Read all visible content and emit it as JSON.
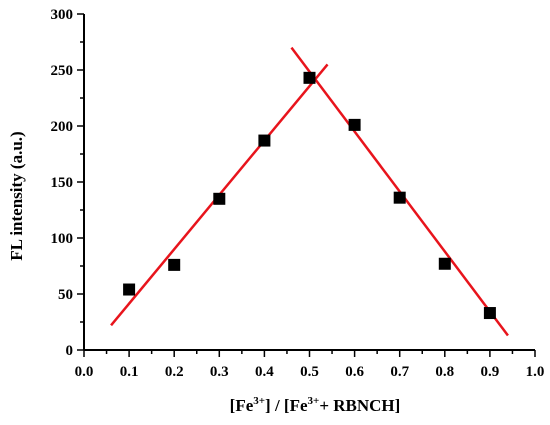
{
  "chart_data": {
    "type": "scatter",
    "title": "",
    "ylabel": "FL intensity (a.u.)",
    "xlabel": {
      "p1": "[Fe",
      "sup1": "3+",
      "p2": "] / [Fe",
      "sup2": "3+",
      "p3": "+ RBNCH]"
    },
    "xlim": [
      0.0,
      1.0
    ],
    "ylim": [
      0,
      300
    ],
    "xticks": [
      "0.0",
      "0.1",
      "0.2",
      "0.3",
      "0.4",
      "0.5",
      "0.6",
      "0.7",
      "0.8",
      "0.9",
      "1.0"
    ],
    "yticks": [
      "0",
      "50",
      "100",
      "150",
      "200",
      "250",
      "300"
    ],
    "grid": false,
    "legend": "none",
    "marker_color": "#000000",
    "fit_color": "#e8141c",
    "series": [
      {
        "x": [
          0.1,
          0.2,
          0.3,
          0.4,
          0.5,
          0.6,
          0.7,
          0.8,
          0.9
        ],
        "y": [
          54,
          76,
          135,
          187,
          243,
          201,
          136,
          77,
          33
        ]
      }
    ],
    "fit_lines": [
      {
        "x": [
          0.06,
          0.54
        ],
        "y": [
          22,
          255
        ]
      },
      {
        "x": [
          0.46,
          0.94
        ],
        "y": [
          270,
          13
        ]
      }
    ]
  }
}
